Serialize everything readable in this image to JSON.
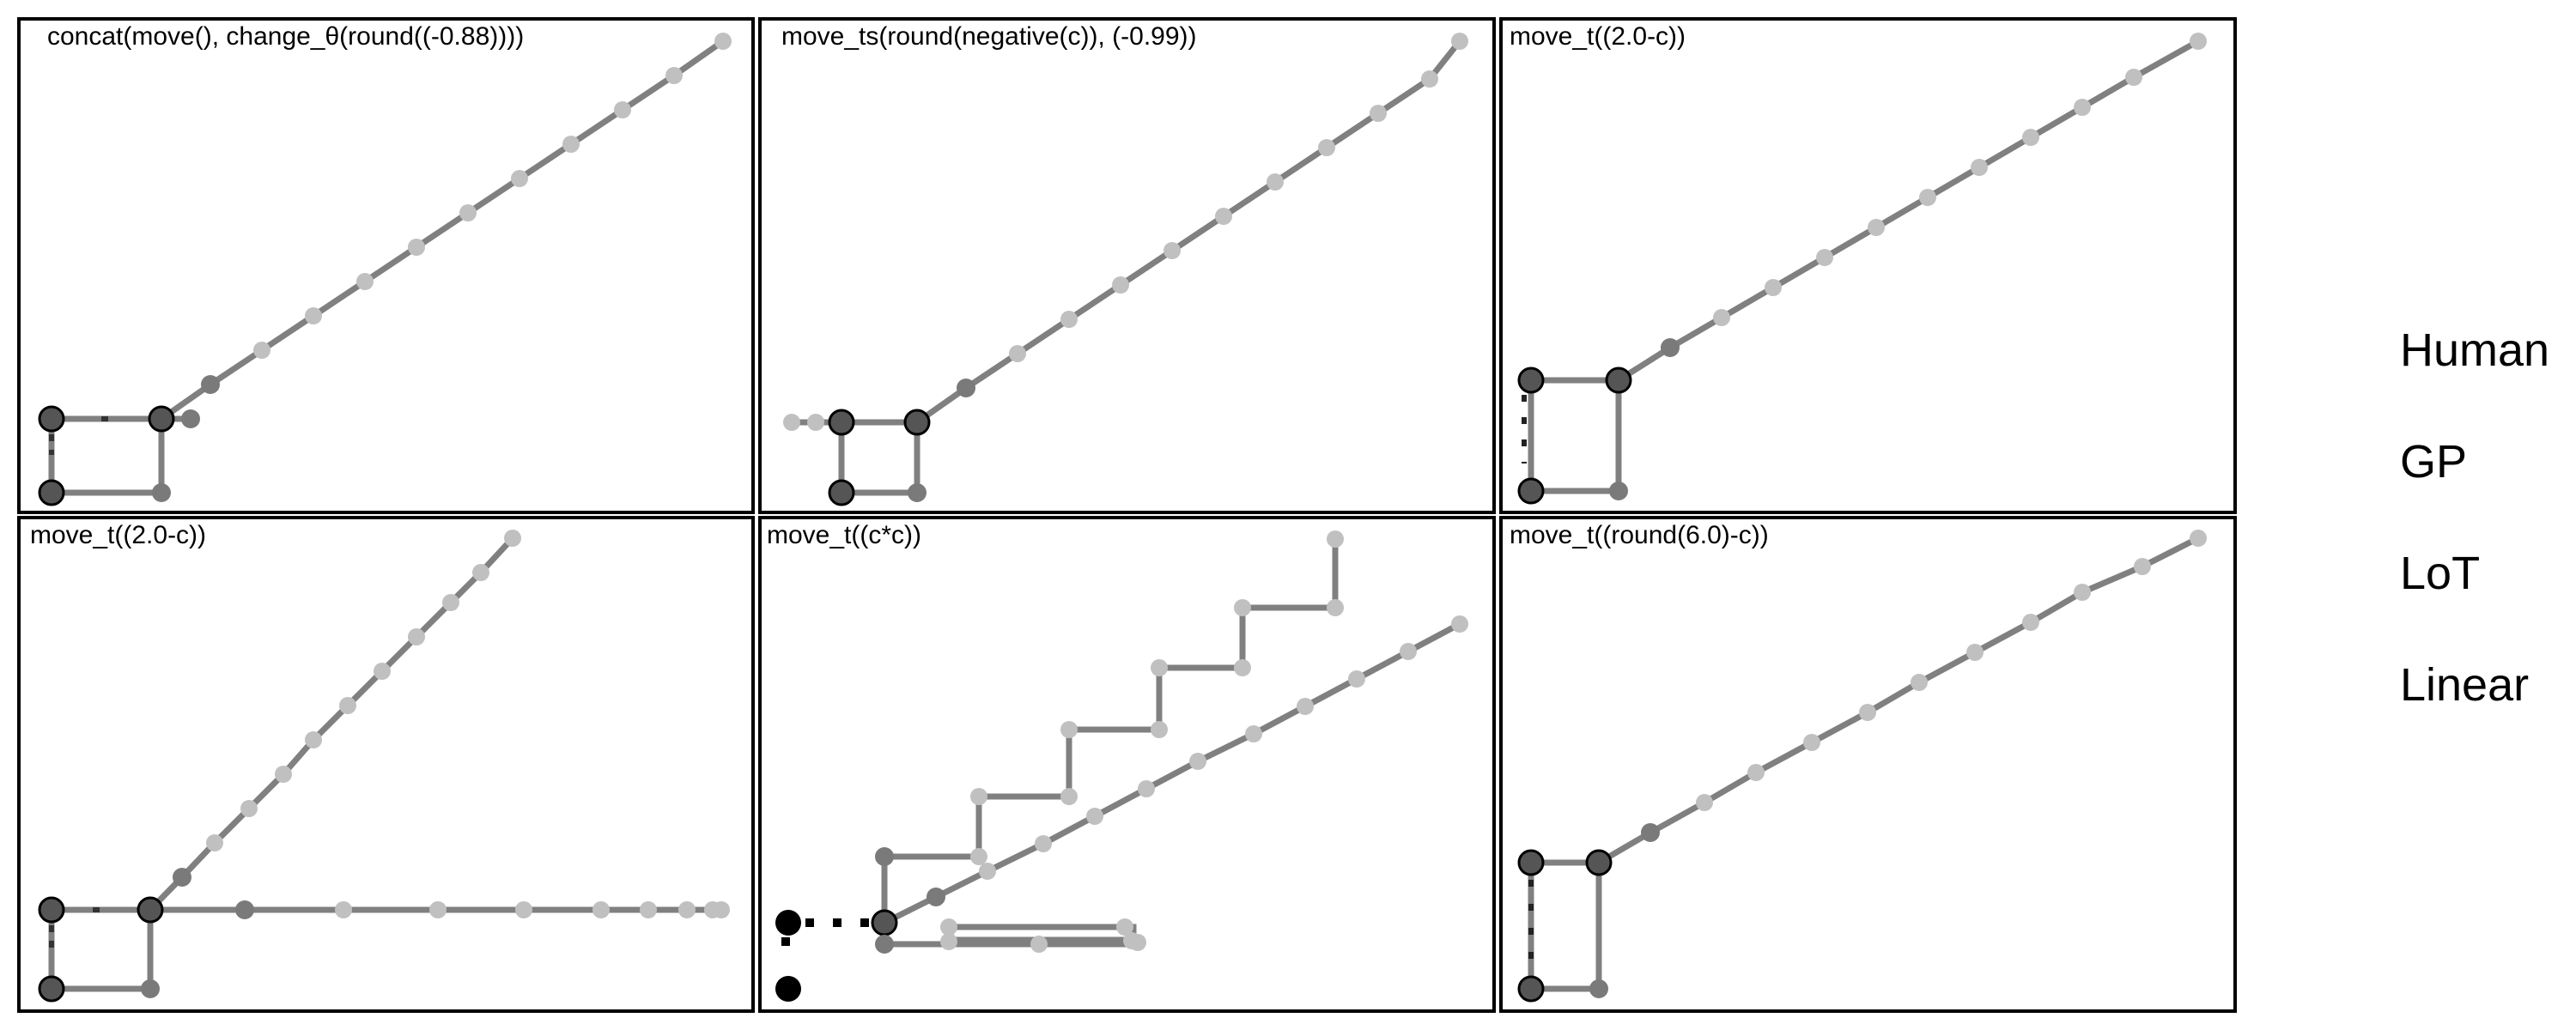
{
  "figure": {
    "panels": [
      {
        "title": "concat(move(), change_θ(round((-0.88))))"
      },
      {
        "title": "move_ts(round(negative(c)), (-0.99))"
      },
      {
        "title": "move_t((2.0-c))"
      },
      {
        "title": "move_t((2.0-c))"
      },
      {
        "title": "move_t((c*c))"
      },
      {
        "title": "move_t((round(6.0)-c))"
      }
    ],
    "legend": {
      "items": [
        {
          "label": "Human"
        },
        {
          "label": "GP"
        },
        {
          "label": "LoT"
        },
        {
          "label": "Linear"
        }
      ]
    }
  },
  "colors": {
    "frame": "#000000",
    "path_gray": "#808080",
    "dot_dark": "#7a7a7a",
    "dot_light": "#c0c0c0",
    "dot_black": "#000000"
  }
}
